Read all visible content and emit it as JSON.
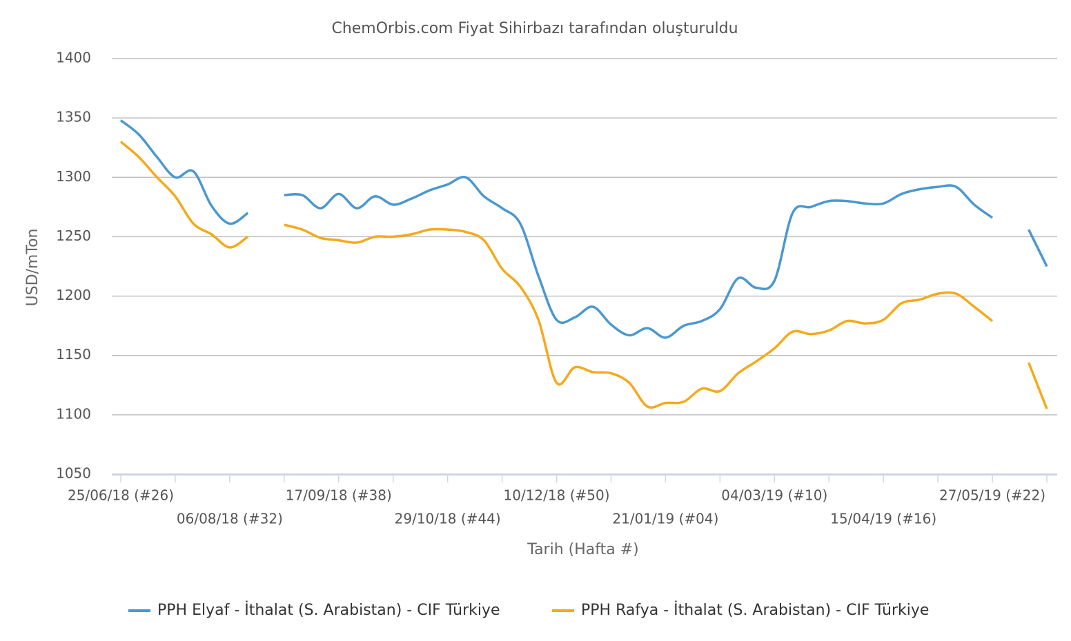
{
  "chart_data": {
    "type": "line",
    "title": "ChemOrbis.com Fiyat Sihirbazı tarafından oluşturuldu",
    "y_label": "USD/mTon",
    "x_label": "Tarih (Hafta #)",
    "categories": [
      "25/06/18 (#26)",
      null,
      null,
      null,
      null,
      null,
      "06/08/18 (#32)",
      null,
      null,
      null,
      null,
      null,
      "17/09/18 (#38)",
      null,
      null,
      null,
      null,
      null,
      "29/10/18 (#44)",
      null,
      null,
      null,
      null,
      null,
      "10/12/18 (#50)",
      null,
      null,
      null,
      null,
      null,
      "21/01/19 (#04)",
      null,
      null,
      null,
      null,
      null,
      "04/03/19 (#10)",
      null,
      null,
      null,
      null,
      null,
      "15/04/19 (#16)",
      null,
      null,
      null,
      null,
      null,
      "27/05/19 (#22)",
      null,
      null,
      null
    ],
    "series": [
      {
        "name": "PPH Elyaf - İthalat (S. Arabistan) - CIF Türkiye",
        "color": "#4a98d0",
        "values": [
          1348,
          1336,
          1317,
          1300,
          1305,
          1276,
          1261,
          1270,
          null,
          1285,
          1285,
          1274,
          1286,
          1274,
          1284,
          1277,
          1282,
          1289,
          1294,
          1300,
          1284,
          1274,
          1261,
          1217,
          1180,
          1182,
          1191,
          1176,
          1167,
          1173,
          1165,
          1175,
          1179,
          1189,
          1215,
          1207,
          1213,
          1270,
          1275,
          1280,
          1280,
          1278,
          1278,
          1286,
          1290,
          1292,
          1292,
          1277,
          1266,
          null,
          1256,
          1225
        ]
      },
      {
        "name": "PPH Rafya - İthalat (S. Arabistan) - CIF Türkiye",
        "color": "#f6a91a",
        "values": [
          1330,
          1317,
          1300,
          1284,
          1261,
          1252,
          1241,
          1250,
          null,
          1260,
          1256,
          1249,
          1247,
          1245,
          1250,
          1250,
          1252,
          1256,
          1256,
          1254,
          1247,
          1223,
          1208,
          1180,
          1127,
          1140,
          1136,
          1135,
          1127,
          1107,
          1110,
          1111,
          1122,
          1120,
          1135,
          1145,
          1156,
          1170,
          1168,
          1171,
          1179,
          1177,
          1180,
          1194,
          1197,
          1202,
          1202,
          1191,
          1179,
          null,
          1144,
          1105
        ]
      }
    ],
    "ylim": [
      1050,
      1400
    ],
    "yticks": [
      1050,
      1100,
      1150,
      1200,
      1250,
      1300,
      1350,
      1400
    ],
    "grid": true
  }
}
